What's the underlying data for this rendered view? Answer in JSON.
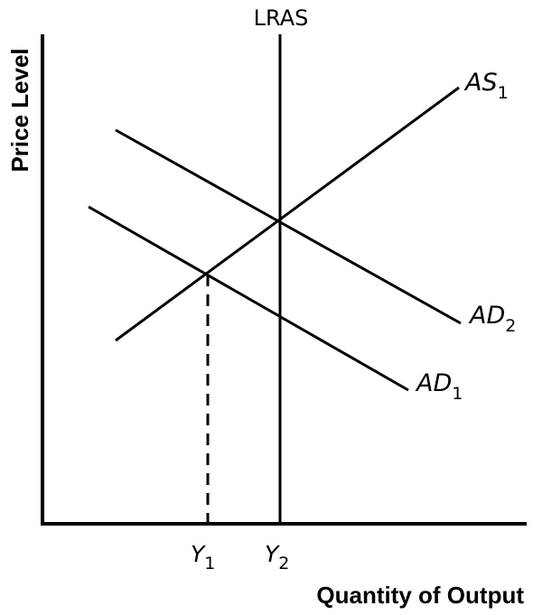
{
  "axes": {
    "y_title": "Price Level",
    "x_title": "Quantity of Output"
  },
  "curves": {
    "lras": {
      "label": "LRAS"
    },
    "as1": {
      "label_main": "AS",
      "label_sub": "1"
    },
    "ad2": {
      "label_main": "AD",
      "label_sub": "2"
    },
    "ad1": {
      "label_main": "AD",
      "label_sub": "1"
    }
  },
  "ticks": {
    "y1": {
      "label_main": "Y",
      "label_sub": "1"
    },
    "y2": {
      "label_main": "Y",
      "label_sub": "2"
    }
  },
  "colors": {
    "ink": "#000000",
    "background": "#ffffff"
  }
}
